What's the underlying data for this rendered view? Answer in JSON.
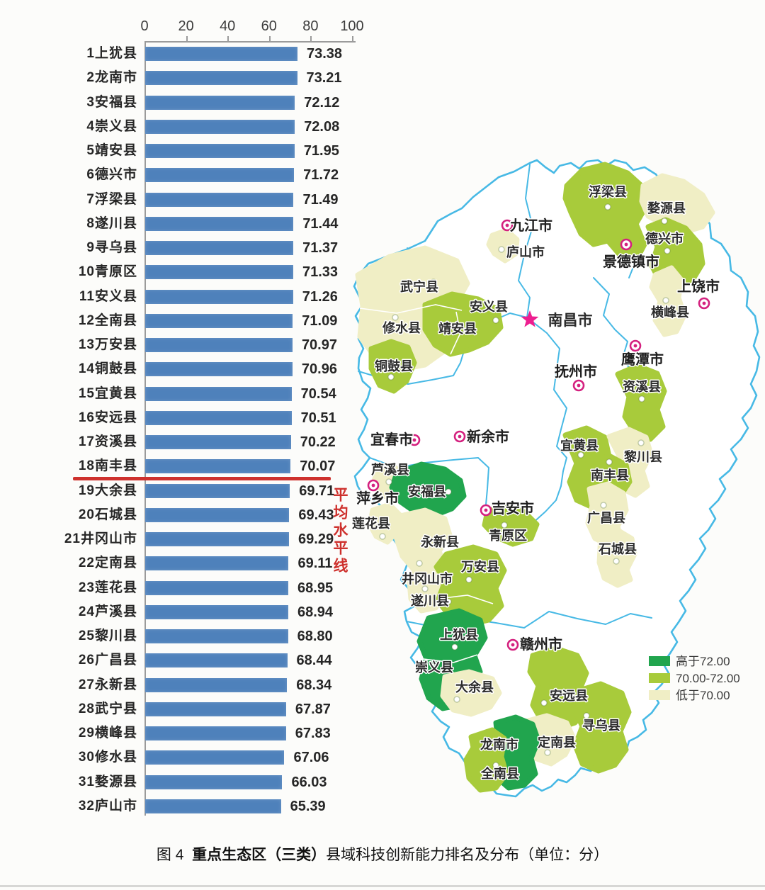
{
  "chart_data": {
    "type": "bar",
    "orientation": "horizontal",
    "title": "",
    "xlabel": "",
    "ylabel": "",
    "xlim": [
      0,
      100
    ],
    "x_ticks": [
      0,
      20,
      40,
      60,
      80,
      100
    ],
    "bar_color": "#4E81BB",
    "grid": false,
    "categories": [
      "1上犹县",
      "2龙南市",
      "3安福县",
      "4崇义县",
      "5靖安县",
      "6德兴市",
      "7浮梁县",
      "8遂川县",
      "9寻乌县",
      "10青原区",
      "11安义县",
      "12全南县",
      "13万安县",
      "14铜鼓县",
      "15宜黄县",
      "16安远县",
      "17资溪县",
      "18南丰县",
      "19大余县",
      "20石城县",
      "21井冈山市",
      "22定南县",
      "23莲花县",
      "24芦溪县",
      "25黎川县",
      "26广昌县",
      "27永新县",
      "28武宁县",
      "29横峰县",
      "30修水县",
      "31婺源县",
      "32庐山市"
    ],
    "values": [
      73.38,
      73.21,
      72.12,
      72.08,
      71.95,
      71.72,
      71.49,
      71.44,
      71.37,
      71.33,
      71.26,
      71.09,
      70.97,
      70.96,
      70.54,
      70.51,
      70.22,
      70.07,
      69.71,
      69.43,
      69.29,
      69.11,
      68.95,
      68.94,
      68.8,
      68.44,
      68.34,
      67.87,
      67.83,
      67.06,
      66.03,
      65.39
    ],
    "value_labels": [
      "73.38",
      "73.21",
      "72.12",
      "72.08",
      "71.95",
      "71.72",
      "71.49",
      "71.44",
      "71.37",
      "71.33",
      "71.26",
      "71.09",
      "70.97",
      "70.96",
      "70.54",
      "70.51",
      "70.22",
      "70.07",
      "69.71",
      "69.43",
      "69.29",
      "69.11",
      "68.95",
      "68.94",
      "68.80",
      "68.44",
      "68.34",
      "67.87",
      "67.83",
      "67.06",
      "66.03",
      "65.39"
    ],
    "average_line": {
      "label": "平均水平线",
      "after_index": 18,
      "color": "#CE312D"
    }
  },
  "map": {
    "border_color": "#47B9E5",
    "marker_color": "#D4217F",
    "marker_styles": {
      "city": "double-circle",
      "capital": "star"
    },
    "legend": [
      {
        "label": "高于72.00",
        "category": "high",
        "color": "#21A54E"
      },
      {
        "label": "70.00-72.00",
        "category": "mid",
        "color": "#A8CB3B"
      },
      {
        "label": "低于70.00",
        "category": "low",
        "color": "#F0EEC5"
      }
    ],
    "capital": {
      "name": "南昌市"
    },
    "cities": [
      "九江市",
      "景德镇市",
      "上饶市",
      "鹰潭市",
      "抚州市",
      "新余市",
      "宜春市",
      "萍乡市",
      "吉安市",
      "赣州市"
    ],
    "counties": [
      {
        "name": "浮梁县",
        "category": "mid"
      },
      {
        "name": "婺源县",
        "category": "low"
      },
      {
        "name": "德兴市",
        "category": "mid"
      },
      {
        "name": "庐山市",
        "category": "low"
      },
      {
        "name": "横峰县",
        "category": "low"
      },
      {
        "name": "武宁县",
        "category": "low"
      },
      {
        "name": "修水县",
        "category": "low"
      },
      {
        "name": "安义县",
        "category": "mid"
      },
      {
        "name": "靖安县",
        "category": "mid"
      },
      {
        "name": "铜鼓县",
        "category": "mid"
      },
      {
        "name": "资溪县",
        "category": "mid"
      },
      {
        "name": "宜黄县",
        "category": "mid"
      },
      {
        "name": "黎川县",
        "category": "low"
      },
      {
        "name": "南丰县",
        "category": "mid"
      },
      {
        "name": "广昌县",
        "category": "low"
      },
      {
        "name": "石城县",
        "category": "low"
      },
      {
        "name": "芦溪县",
        "category": "low"
      },
      {
        "name": "莲花县",
        "category": "low"
      },
      {
        "name": "安福县",
        "category": "high"
      },
      {
        "name": "青原区",
        "category": "mid"
      },
      {
        "name": "永新县",
        "category": "low"
      },
      {
        "name": "井冈山市",
        "category": "low"
      },
      {
        "name": "万安县",
        "category": "mid"
      },
      {
        "name": "遂川县",
        "category": "mid"
      },
      {
        "name": "上犹县",
        "category": "high"
      },
      {
        "name": "崇义县",
        "category": "high"
      },
      {
        "name": "大余县",
        "category": "low"
      },
      {
        "name": "安远县",
        "category": "mid"
      },
      {
        "name": "寻乌县",
        "category": "mid"
      },
      {
        "name": "定南县",
        "category": "low"
      },
      {
        "name": "龙南市",
        "category": "high"
      },
      {
        "name": "全南县",
        "category": "mid"
      }
    ]
  },
  "caption": {
    "prefix": "图 4",
    "bold": "重点生态区（三类）",
    "rest": "县域科技创新能力排名及分布（单位：分）"
  }
}
